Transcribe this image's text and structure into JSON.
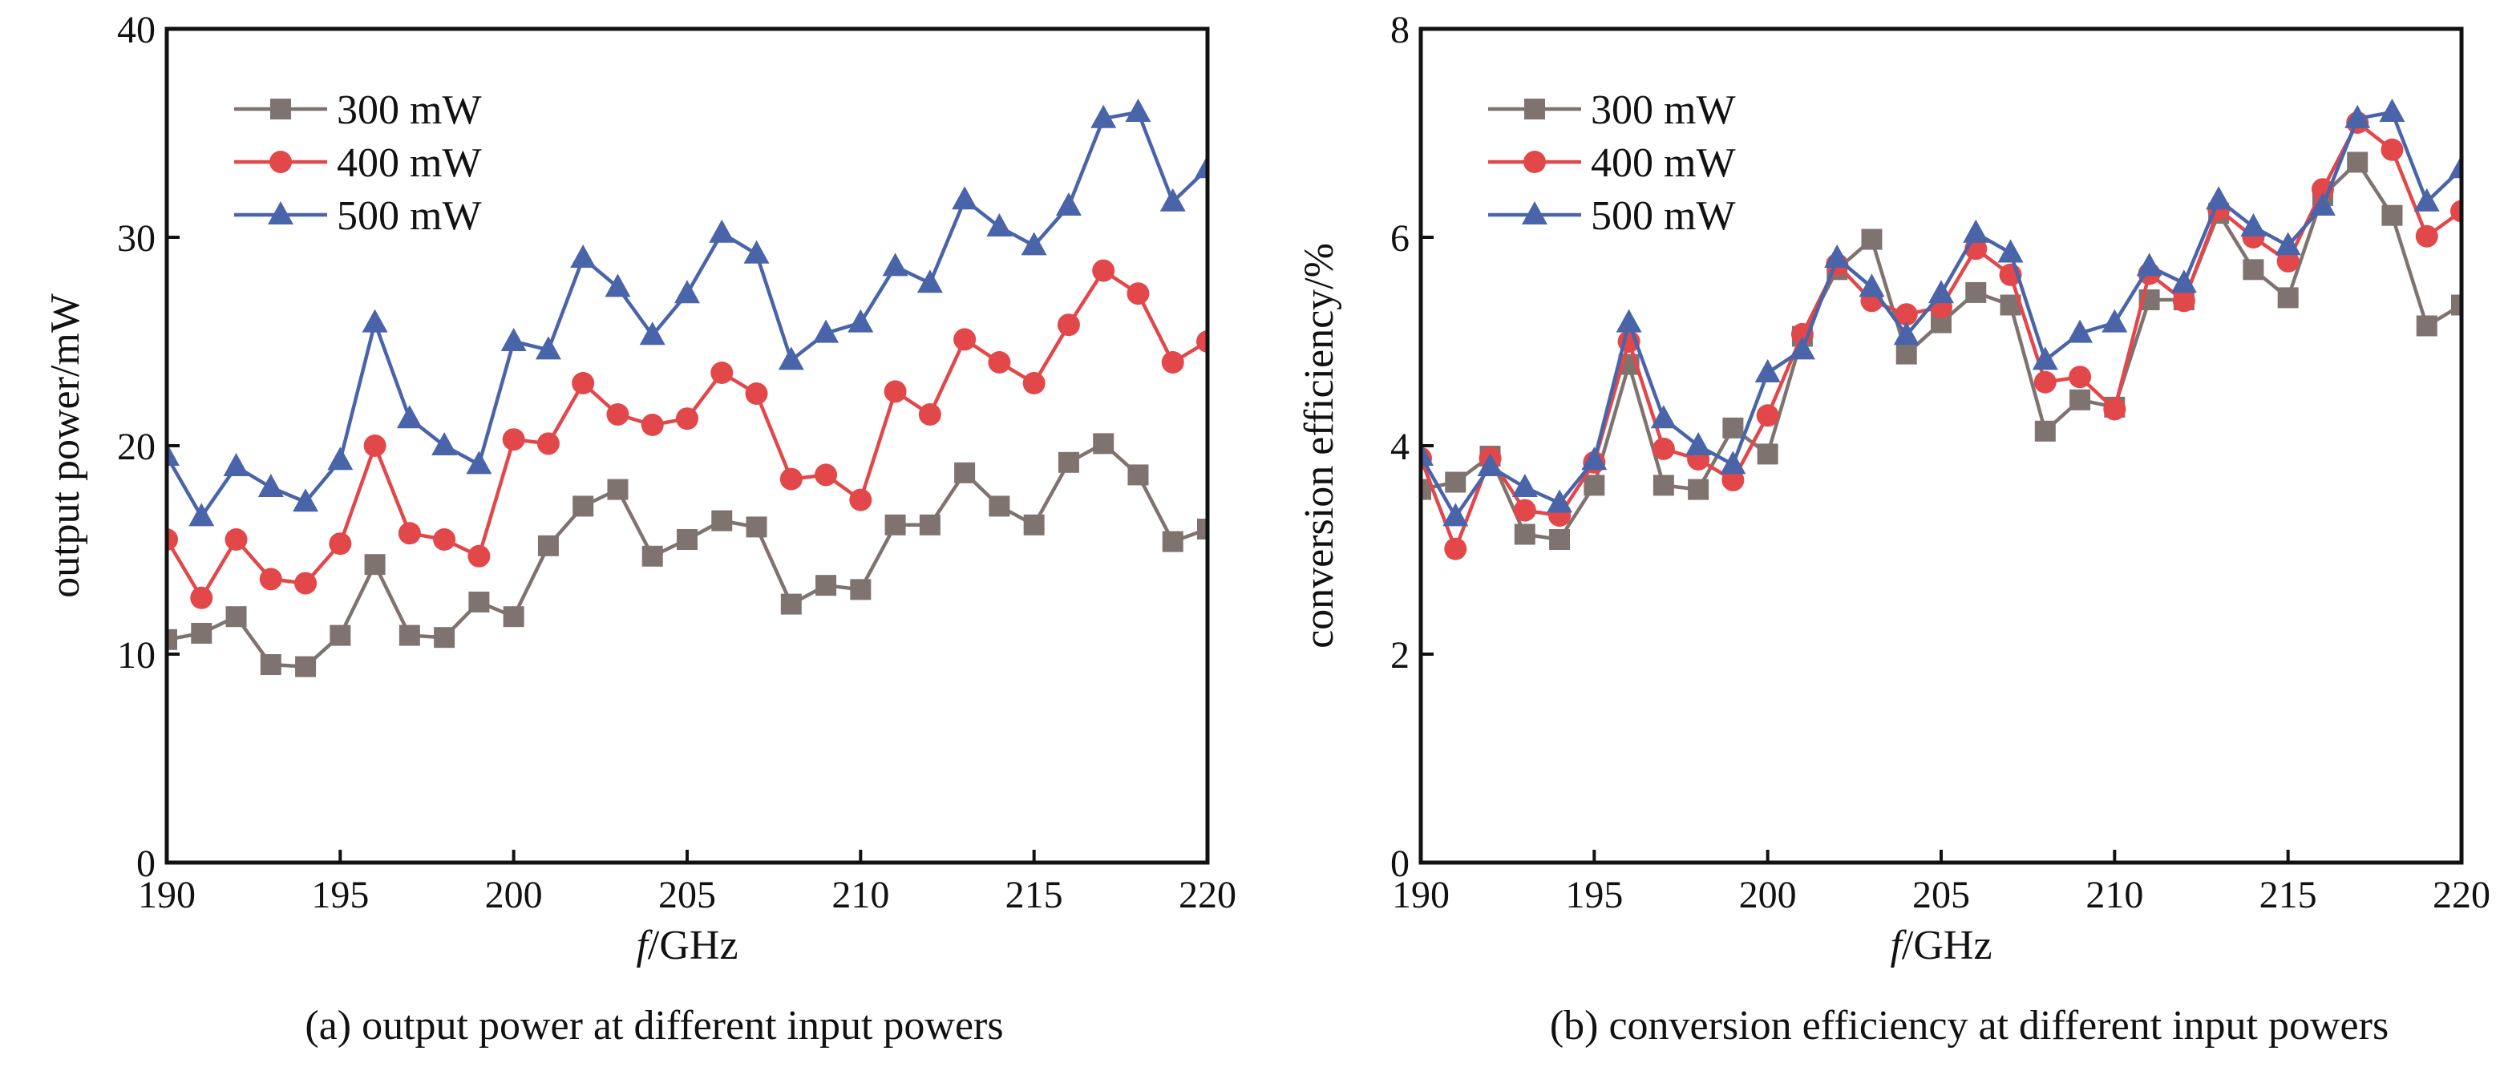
{
  "chart_data": [
    {
      "type": "line",
      "caption": "(a) output power at different input powers",
      "xlabel_italic": "f",
      "xlabel_rest": "/GHz",
      "ylabel": "output power/mW",
      "xlim": [
        190,
        220
      ],
      "ylim": [
        0,
        40
      ],
      "xticks": [
        "190",
        "195",
        "200",
        "205",
        "210",
        "215",
        "220"
      ],
      "yticks": [
        "0",
        "10",
        "20",
        "30",
        "40"
      ],
      "legend_position": "top-left",
      "x": [
        190,
        191,
        192,
        193,
        194,
        195,
        196,
        197,
        198,
        199,
        200,
        201,
        202,
        203,
        204,
        205,
        206,
        207,
        208,
        209,
        210,
        211,
        212,
        213,
        214,
        215,
        216,
        217,
        218,
        219,
        220
      ],
      "series": [
        {
          "name": "300 mW",
          "color": "#7f7370",
          "marker": "square",
          "values": [
            10.7,
            11.0,
            11.8,
            9.5,
            9.4,
            10.9,
            14.3,
            10.9,
            10.8,
            12.5,
            11.8,
            15.2,
            17.1,
            17.9,
            14.7,
            15.5,
            16.4,
            16.1,
            12.4,
            13.3,
            13.1,
            16.2,
            16.2,
            18.7,
            17.1,
            16.2,
            19.2,
            20.1,
            18.6,
            15.4,
            16.0
          ]
        },
        {
          "name": "400 mW",
          "color": "#e2474a",
          "marker": "circle",
          "values": [
            15.5,
            12.7,
            15.5,
            13.6,
            13.4,
            15.3,
            20.0,
            15.8,
            15.5,
            14.7,
            20.3,
            20.1,
            23.0,
            21.5,
            21.0,
            21.3,
            23.5,
            22.5,
            18.4,
            18.6,
            17.4,
            22.6,
            21.5,
            25.1,
            24.0,
            23.0,
            25.8,
            28.4,
            27.3,
            24.0,
            25.0
          ]
        },
        {
          "name": "500 mW",
          "color": "#4a64a9",
          "marker": "triangle",
          "values": [
            19.5,
            16.6,
            19.0,
            18.0,
            17.3,
            19.3,
            25.9,
            21.3,
            20.0,
            19.1,
            25.0,
            24.6,
            29.0,
            27.6,
            25.3,
            27.3,
            30.2,
            29.2,
            24.1,
            25.4,
            25.9,
            28.6,
            27.8,
            31.8,
            30.5,
            29.6,
            31.5,
            35.7,
            36.0,
            31.7,
            33.3
          ]
        }
      ]
    },
    {
      "type": "line",
      "caption": "(b) conversion efficiency at different input powers",
      "xlabel_italic": "f",
      "xlabel_rest": "/GHz",
      "ylabel": "conversion efficiency/%",
      "xlim": [
        190,
        220
      ],
      "ylim": [
        0,
        8
      ],
      "xticks": [
        "190",
        "195",
        "200",
        "205",
        "210",
        "215",
        "220"
      ],
      "yticks": [
        "0",
        "2",
        "4",
        "6",
        "8"
      ],
      "legend_position": "top-left",
      "x": [
        190,
        191,
        192,
        193,
        194,
        195,
        196,
        197,
        198,
        199,
        200,
        201,
        202,
        203,
        204,
        205,
        206,
        207,
        208,
        209,
        210,
        211,
        212,
        213,
        214,
        215,
        216,
        217,
        218,
        219,
        220
      ],
      "series": [
        {
          "name": "300 mW",
          "color": "#7f7370",
          "marker": "square",
          "values": [
            3.58,
            3.65,
            3.9,
            3.15,
            3.1,
            3.62,
            4.78,
            3.62,
            3.58,
            4.17,
            3.92,
            5.05,
            5.69,
            5.98,
            4.88,
            5.18,
            5.47,
            5.35,
            4.14,
            4.44,
            4.37,
            5.4,
            5.4,
            6.23,
            5.69,
            5.42,
            6.4,
            6.72,
            6.21,
            5.15,
            5.35
          ]
        },
        {
          "name": "400 mW",
          "color": "#e2474a",
          "marker": "circle",
          "values": [
            3.88,
            3.01,
            3.88,
            3.38,
            3.33,
            3.84,
            5.0,
            3.97,
            3.87,
            3.67,
            4.29,
            5.07,
            5.74,
            5.39,
            5.26,
            5.33,
            5.89,
            5.64,
            4.61,
            4.66,
            4.35,
            5.65,
            5.39,
            6.27,
            6.0,
            5.77,
            6.46,
            7.1,
            6.84,
            6.01,
            6.25
          ]
        },
        {
          "name": "500 mW",
          "color": "#4a64a9",
          "marker": "triangle",
          "values": [
            3.9,
            3.32,
            3.8,
            3.6,
            3.45,
            3.86,
            5.18,
            4.26,
            4.0,
            3.82,
            4.7,
            4.92,
            5.8,
            5.52,
            5.06,
            5.46,
            6.04,
            5.85,
            4.82,
            5.08,
            5.18,
            5.72,
            5.56,
            6.36,
            6.1,
            5.92,
            6.3,
            7.14,
            7.2,
            6.34,
            6.66
          ]
        }
      ]
    }
  ]
}
